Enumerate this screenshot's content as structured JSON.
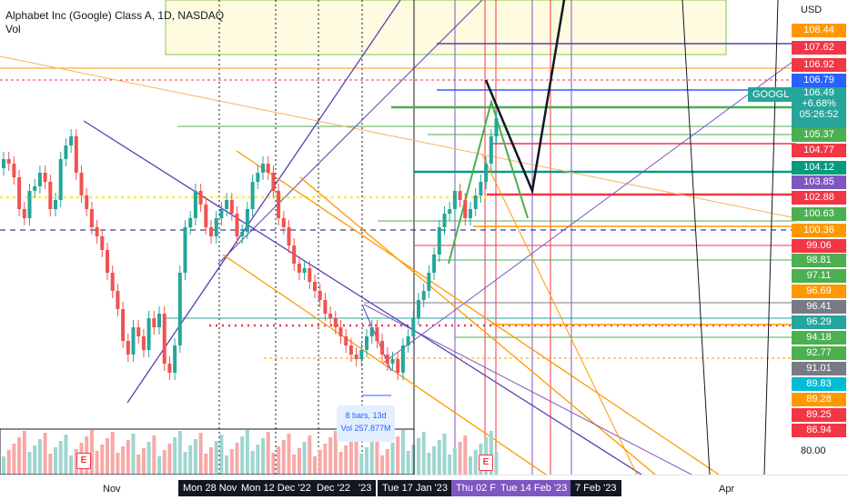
{
  "header": {
    "title": "Alphabet Inc (Google) Class A, 1D, NASDAQ",
    "subtitle": "Vol"
  },
  "price_axis": {
    "currency": "USD",
    "bottom_value": "80.00"
  },
  "price_labels": [
    {
      "value": "108.44",
      "color": "#ff9800"
    },
    {
      "value": "107.62",
      "color": "#f23645"
    },
    {
      "value": "106.92",
      "color": "#f23645"
    },
    {
      "value": "106.79",
      "color": "#2962ff"
    },
    {
      "value": "105.37",
      "color": "#4caf50"
    },
    {
      "value": "104.77",
      "color": "#f23645"
    },
    {
      "value": "104.12",
      "color": "#089981"
    },
    {
      "value": "103.85",
      "color": "#7e57c2"
    },
    {
      "value": "102.88",
      "color": "#f23645"
    },
    {
      "value": "100.63",
      "color": "#4caf50"
    },
    {
      "value": "100.36",
      "color": "#ff9800"
    },
    {
      "value": "99.06",
      "color": "#f23645"
    },
    {
      "value": "98.81",
      "color": "#4caf50"
    },
    {
      "value": "97.11",
      "color": "#4caf50"
    },
    {
      "value": "96.69",
      "color": "#ff9800"
    },
    {
      "value": "96.41",
      "color": "#787b86"
    },
    {
      "value": "96.29",
      "color": "#26a69a"
    },
    {
      "value": "94.18",
      "color": "#4caf50"
    },
    {
      "value": "92.77",
      "color": "#4caf50"
    },
    {
      "value": "91.01",
      "color": "#787b86"
    },
    {
      "value": "89.83",
      "color": "#00bcd4"
    },
    {
      "value": "89.28",
      "color": "#ff9800"
    },
    {
      "value": "89.25",
      "color": "#f23645"
    },
    {
      "value": "86.94",
      "color": "#f23645"
    }
  ],
  "ticker": {
    "symbol": "GOOGL",
    "price": "106.49",
    "change": "+6.68%",
    "countdown": "05:26:52"
  },
  "measure_tooltip": {
    "bars": "8 bars, 13d",
    "volume": "Vol 257.877M"
  },
  "time_axis": {
    "labels": [
      "Nov",
      "Apr"
    ],
    "boxes": [
      {
        "text": "Mon 28 Nov",
        "style": "dark"
      },
      {
        "text": "Mon 12 Dec '22",
        "style": "dark"
      },
      {
        "text": "Dec '22",
        "style": "dark"
      },
      {
        "text": "'23",
        "style": "dark"
      },
      {
        "text": "Tue 17 Jan '23",
        "style": "dark"
      },
      {
        "text": "Thu 02 F",
        "style": "purple"
      },
      {
        "text": "Tue 14 Feb '23",
        "style": "purple"
      },
      {
        "text": "7 Feb '23",
        "style": "dark"
      }
    ]
  },
  "earnings": [
    {
      "label": "E"
    },
    {
      "label": "E"
    }
  ],
  "colors": {
    "up": "#26a69a",
    "down": "#ef5350",
    "vol_up": "#9ed6cf",
    "vol_down": "#f7a9a7"
  }
}
